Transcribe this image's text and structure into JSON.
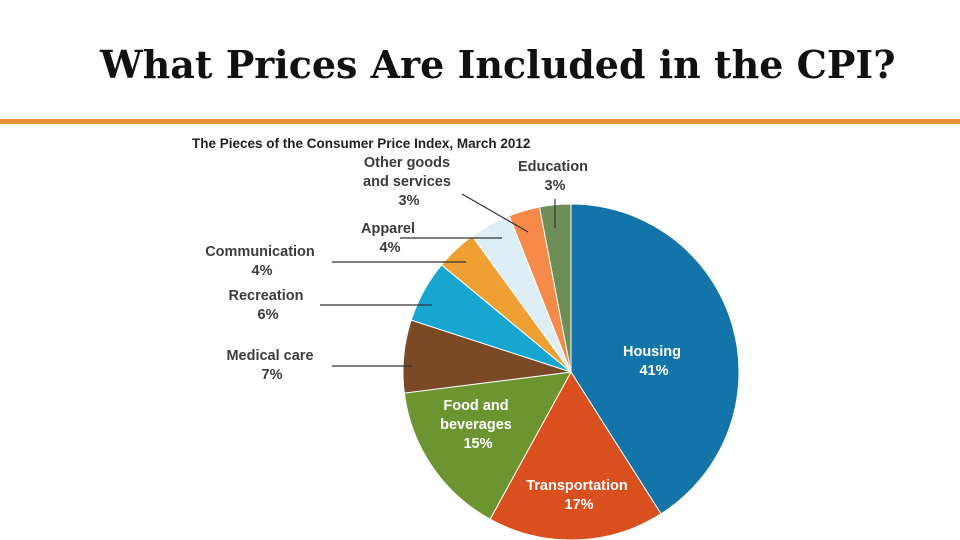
{
  "slide": {
    "title": "What Prices Are Included in the CPI?"
  },
  "chart_data": {
    "type": "pie",
    "title": "The Pieces of the Consumer Price Index, March 2012",
    "slices": [
      {
        "label": "Housing",
        "value": 41,
        "pct": "41%",
        "color": "#1274A8"
      },
      {
        "label": "Transportation",
        "value": 17,
        "pct": "17%",
        "color": "#D9501E"
      },
      {
        "label": "Food and beverages",
        "value": 15,
        "pct": "15%",
        "color": "#6C9431"
      },
      {
        "label": "Medical care",
        "value": 7,
        "pct": "7%",
        "color": "#7A4A26"
      },
      {
        "label": "Recreation",
        "value": 6,
        "pct": "6%",
        "color": "#16A6CF"
      },
      {
        "label": "Communication",
        "value": 4,
        "pct": "4%",
        "color": "#F0A032"
      },
      {
        "label": "Apparel",
        "value": 4,
        "pct": "4%",
        "color": "#DDEEF6"
      },
      {
        "label": "Other goods and services",
        "value": 3,
        "pct": "3%",
        "color": "#F58A4B"
      },
      {
        "label": "Education",
        "value": 3,
        "pct": "3%",
        "color": "#6E8E57"
      }
    ],
    "label_lines": {
      "housing": [
        "Housing",
        "41%"
      ],
      "transportation": [
        "Transportation",
        "17%"
      ],
      "food": [
        "Food and",
        "beverages",
        "15%"
      ],
      "medical": [
        "Medical care",
        "7%"
      ],
      "recreation": [
        "Recreation",
        "6%"
      ],
      "communication": [
        "Communication",
        "4%"
      ],
      "apparel": [
        "Apparel",
        "4%"
      ],
      "other": [
        "Other goods",
        "and services",
        "3%"
      ],
      "education": [
        "Education",
        "3%"
      ]
    }
  },
  "colors": {
    "accent_rule": "#E8913A"
  }
}
